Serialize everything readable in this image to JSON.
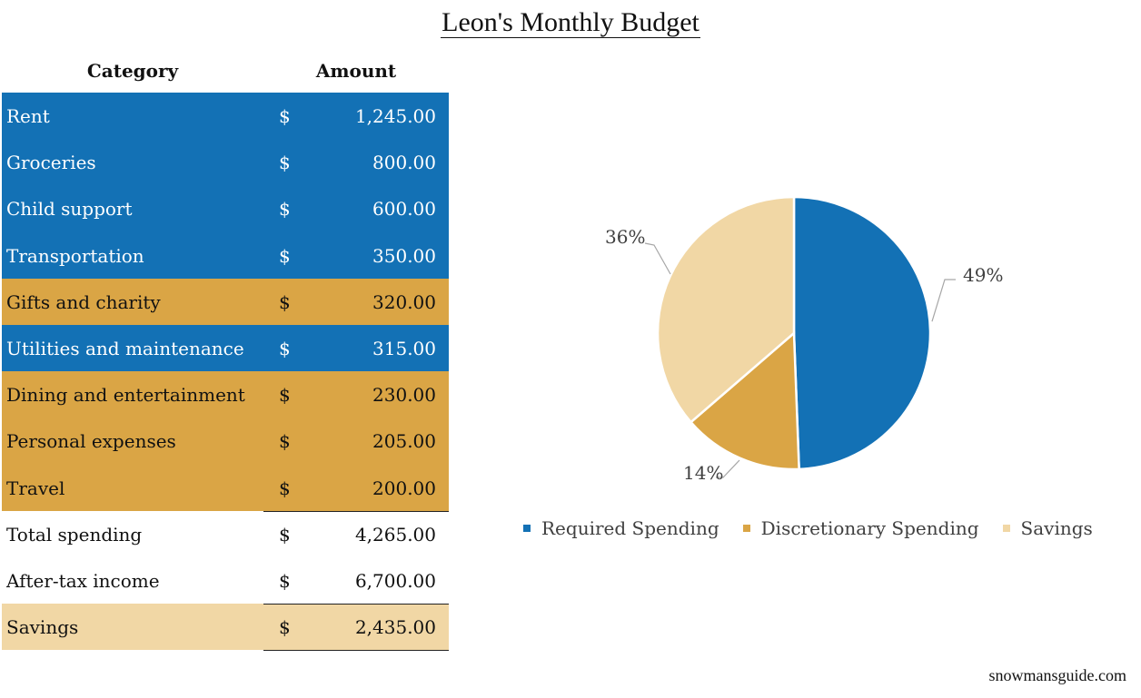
{
  "title": "Leon's Monthly Budget",
  "table": {
    "headers": {
      "category": "Category",
      "amount": "Amount"
    },
    "rows": [
      {
        "category": "Rent",
        "currency": "$",
        "amount": "1,245.00",
        "group": "req"
      },
      {
        "category": "Groceries",
        "currency": "$",
        "amount": "800.00",
        "group": "req"
      },
      {
        "category": "Child support",
        "currency": "$",
        "amount": "600.00",
        "group": "req"
      },
      {
        "category": "Transportation",
        "currency": "$",
        "amount": "350.00",
        "group": "req"
      },
      {
        "category": "Gifts and charity",
        "currency": "$",
        "amount": "320.00",
        "group": "disc"
      },
      {
        "category": "Utilities and maintenance",
        "currency": "$",
        "amount": "315.00",
        "group": "req"
      },
      {
        "category": "Dining and entertainment",
        "currency": "$",
        "amount": "230.00",
        "group": "disc"
      },
      {
        "category": "Personal expenses",
        "currency": "$",
        "amount": "205.00",
        "group": "disc"
      },
      {
        "category": "Travel",
        "currency": "$",
        "amount": "200.00",
        "group": "disc"
      }
    ],
    "total_spending": {
      "category": "Total spending",
      "currency": "$",
      "amount": "4,265.00"
    },
    "income": {
      "category": "After-tax income",
      "currency": "$",
      "amount": "6,700.00"
    },
    "savings": {
      "category": "Savings",
      "currency": "$",
      "amount": "2,435.00"
    }
  },
  "chart_data": {
    "type": "pie",
    "title": "",
    "categories": [
      "Required Spending",
      "Discretionary Spending",
      "Savings"
    ],
    "values": [
      3310,
      955,
      2435
    ],
    "labels": [
      "49%",
      "14%",
      "36%"
    ],
    "colors": [
      "#1371b5",
      "#daa545",
      "#f1d7a5"
    ],
    "legend_position": "bottom"
  },
  "footer": "snowmansguide.com"
}
